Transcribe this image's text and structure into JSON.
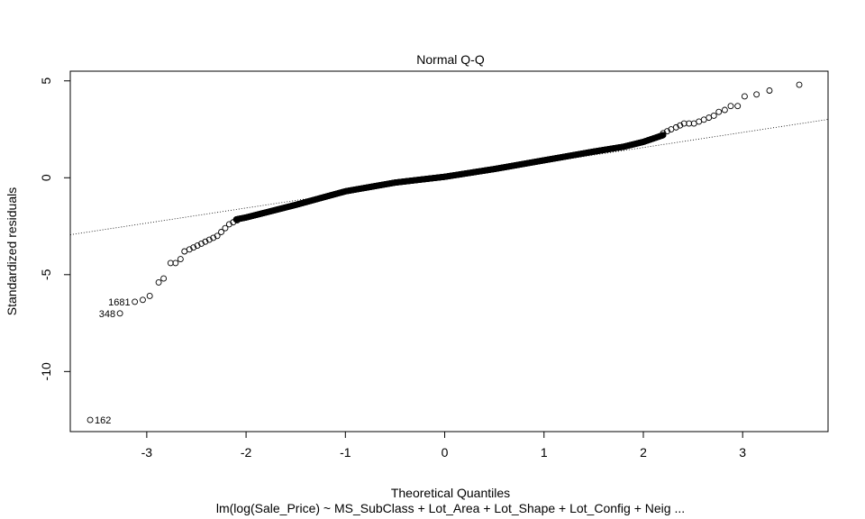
{
  "chart_data": {
    "type": "scatter",
    "title": "Normal Q-Q",
    "xlabel": "Theoretical Quantiles",
    "ylabel": "Standardized residuals",
    "subtitle": "lm(log(Sale_Price) ~ MS_SubClass + Lot_Area + Lot_Shape + Lot_Config + Neig ...",
    "xlim": [
      -3.77,
      3.86
    ],
    "ylim": [
      -13.1,
      5.5
    ],
    "x_ticks": [
      -3,
      -2,
      -1,
      0,
      1,
      2,
      3
    ],
    "y_ticks": [
      -10,
      -5,
      0,
      5
    ],
    "reference_line": {
      "intercept": 0.0,
      "slope": 0.78,
      "style": "dotted"
    },
    "labeled_points": [
      {
        "label": "162",
        "x": -3.57,
        "y": -12.5
      },
      {
        "label": "348",
        "x": -3.27,
        "y": -7.0
      },
      {
        "label": "1681",
        "x": -3.12,
        "y": -6.4
      }
    ],
    "tail_points": [
      [
        -3.57,
        -12.5
      ],
      [
        -3.27,
        -7.0
      ],
      [
        -3.12,
        -6.4
      ],
      [
        -3.04,
        -6.3
      ],
      [
        -2.97,
        -6.1
      ],
      [
        -2.88,
        -5.4
      ],
      [
        -2.83,
        -5.2
      ],
      [
        -2.76,
        -4.4
      ],
      [
        -2.71,
        -4.4
      ],
      [
        -2.66,
        -4.2
      ],
      [
        -2.62,
        -3.8
      ],
      [
        -2.57,
        -3.7
      ],
      [
        -2.53,
        -3.6
      ],
      [
        -2.49,
        -3.5
      ],
      [
        -2.45,
        -3.4
      ],
      [
        -2.41,
        -3.3
      ],
      [
        -2.37,
        -3.2
      ],
      [
        -2.33,
        -3.1
      ],
      [
        -2.29,
        -3.0
      ],
      [
        -2.25,
        -2.8
      ],
      [
        -2.21,
        -2.6
      ],
      [
        -2.17,
        -2.4
      ],
      [
        -2.13,
        -2.3
      ],
      [
        -2.09,
        -2.2
      ],
      [
        2.2,
        2.3
      ],
      [
        2.24,
        2.4
      ],
      [
        2.28,
        2.5
      ],
      [
        2.33,
        2.6
      ],
      [
        2.37,
        2.7
      ],
      [
        2.41,
        2.8
      ],
      [
        2.46,
        2.8
      ],
      [
        2.51,
        2.8
      ],
      [
        2.56,
        2.9
      ],
      [
        2.61,
        3.0
      ],
      [
        2.66,
        3.1
      ],
      [
        2.71,
        3.2
      ],
      [
        2.76,
        3.4
      ],
      [
        2.82,
        3.5
      ],
      [
        2.88,
        3.7
      ],
      [
        2.95,
        3.7
      ],
      [
        3.02,
        4.2
      ],
      [
        3.14,
        4.3
      ],
      [
        3.27,
        4.5
      ],
      [
        3.57,
        4.8
      ]
    ],
    "body_trend": [
      [
        -2.1,
        -2.15
      ],
      [
        -2.0,
        -2.05
      ],
      [
        -1.5,
        -1.4
      ],
      [
        -1.0,
        -0.7
      ],
      [
        -0.5,
        -0.25
      ],
      [
        0.0,
        0.05
      ],
      [
        0.5,
        0.45
      ],
      [
        1.0,
        0.9
      ],
      [
        1.5,
        1.35
      ],
      [
        1.8,
        1.6
      ],
      [
        2.0,
        1.85
      ],
      [
        2.2,
        2.2
      ]
    ],
    "body_point_count": 1150,
    "grid": false,
    "legend": "none"
  }
}
